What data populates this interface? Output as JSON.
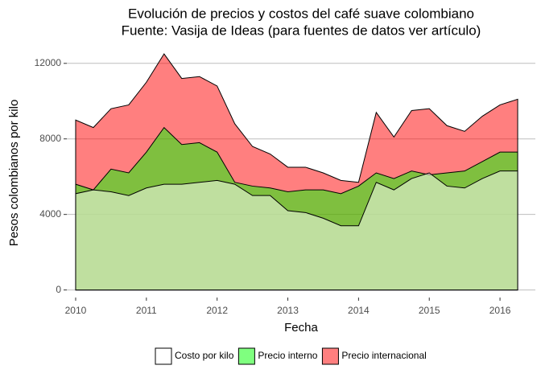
{
  "chart_data": {
    "type": "area",
    "title": "Evolución de precios y costos del café suave colombiano",
    "subtitle": "Fuente: Vasija de Ideas (para fuentes de datos ver artículo)",
    "x_label": "Fecha",
    "y_label": "Pesos colombianos por kilo",
    "x": [
      2010,
      2010.25,
      2010.5,
      2010.75,
      2011,
      2011.25,
      2011.5,
      2011.75,
      2012,
      2012.25,
      2012.5,
      2012.75,
      2013,
      2013.25,
      2013.5,
      2013.75,
      2014,
      2014.25,
      2014.5,
      2014.75,
      2015,
      2015.25,
      2015.5,
      2015.75,
      2016,
      2016.25
    ],
    "series": [
      {
        "name": "Precio internacional",
        "color": "#ff0000",
        "values": [
          9000,
          8600,
          9600,
          9800,
          11000,
          12500,
          11200,
          11300,
          10800,
          8800,
          7600,
          7200,
          6500,
          6500,
          6200,
          5800,
          5700,
          9400,
          8100,
          9500,
          9600,
          8700,
          8400,
          9200,
          9800,
          10100
        ]
      },
      {
        "name": "Precio interno",
        "color": "#00ff00",
        "values": [
          5600,
          5300,
          6400,
          6200,
          7300,
          8600,
          7700,
          7800,
          7300,
          5700,
          5500,
          5400,
          5200,
          5300,
          5300,
          5100,
          5500,
          6200,
          5900,
          6300,
          6100,
          6200,
          6300,
          6800,
          7300,
          7300
        ]
      },
      {
        "name": "Costo por kilo",
        "color": "#ffffff",
        "values": [
          5100,
          5300,
          5200,
          5000,
          5400,
          5600,
          5600,
          5700,
          5800,
          5600,
          5000,
          5000,
          4200,
          4100,
          3800,
          3400,
          3400,
          5700,
          5300,
          5900,
          6200,
          5500,
          5400,
          5900,
          6300,
          6300
        ]
      }
    ],
    "legend_order": [
      2,
      1,
      0
    ],
    "xlim": [
      2009.875,
      2016.5
    ],
    "xticks": [
      2010,
      2011,
      2012,
      2013,
      2014,
      2015,
      2016
    ],
    "ylim": [
      -400,
      12800
    ],
    "yticks": [
      0,
      4000,
      8000,
      12000
    ],
    "grid": true,
    "fill_opacity": 0.5,
    "legend": "bottom"
  }
}
